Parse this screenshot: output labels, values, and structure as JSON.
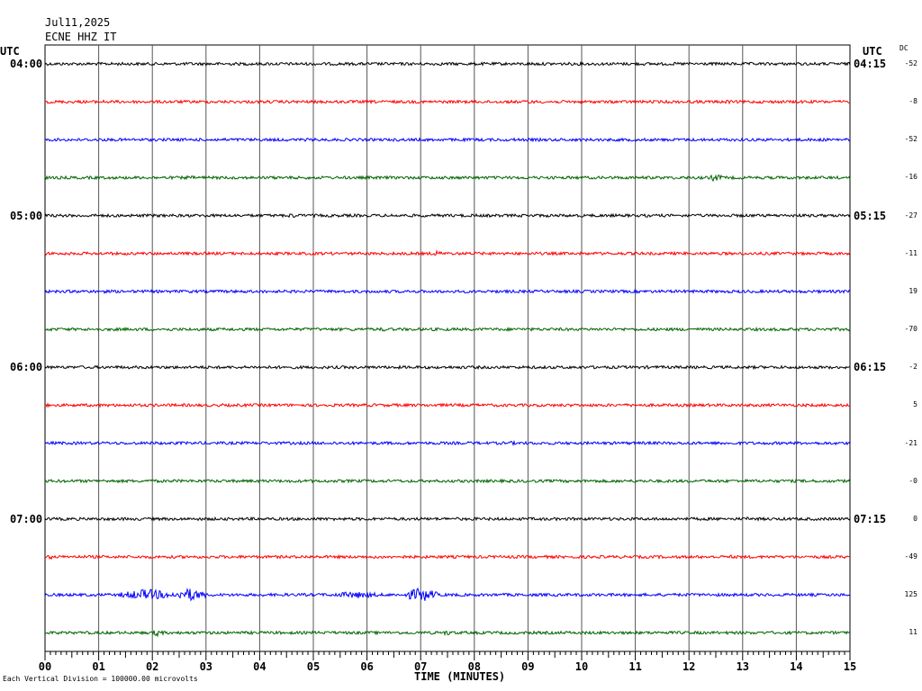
{
  "header": {
    "date": "Jul11,2025",
    "station": "ECNE HHZ IT"
  },
  "left_utc_label": "UTC",
  "right_utc_label": "UTC",
  "dc_label": "DC",
  "footer": {
    "xlabel": "TIME (MINUTES)",
    "scale_note": "Each Vertical Division = 100000.00 microvolts"
  },
  "colors": {
    "trace_cycle": [
      "#000000",
      "#ff0000",
      "#0000ff",
      "#006400"
    ],
    "grid": "#000000"
  },
  "chart_data": {
    "type": "line",
    "title": "",
    "xlabel": "TIME (MINUTES)",
    "xlim": [
      0,
      15
    ],
    "x_ticks": [
      "00",
      "01",
      "02",
      "03",
      "04",
      "05",
      "06",
      "07",
      "08",
      "09",
      "10",
      "11",
      "12",
      "13",
      "14",
      "15"
    ],
    "grid": true,
    "rows": [
      {
        "left_time": "04:00",
        "right_time": "04:15",
        "dc": "-52",
        "color": "#000000",
        "events": [
          {
            "minute": 9.1,
            "amp": 1.3
          },
          {
            "minute": 13.9,
            "amp": 1.2
          }
        ]
      },
      {
        "left_time": "",
        "right_time": "",
        "dc": "-8",
        "color": "#ff0000",
        "events": [
          {
            "minute": 1.1,
            "amp": 1.3
          },
          {
            "minute": 9.0,
            "amp": 1.6
          },
          {
            "minute": 12.7,
            "amp": 1.6
          }
        ]
      },
      {
        "left_time": "",
        "right_time": "",
        "dc": "-52",
        "color": "#0000ff",
        "events": [
          {
            "minute": 9.6,
            "amp": 1.2
          },
          {
            "minute": 14.4,
            "amp": 1.3
          }
        ]
      },
      {
        "left_time": "",
        "right_time": "",
        "dc": "-16",
        "color": "#006400",
        "events": [
          {
            "minute": 2.7,
            "amp": 1.6
          },
          {
            "minute": 12.5,
            "amp": 3.0
          }
        ]
      },
      {
        "left_time": "05:00",
        "right_time": "05:15",
        "dc": "-27",
        "color": "#000000",
        "events": [
          {
            "minute": 2.3,
            "amp": 1.4
          },
          {
            "minute": 4.6,
            "amp": 1.8
          }
        ]
      },
      {
        "left_time": "",
        "right_time": "",
        "dc": "-11",
        "color": "#ff0000",
        "events": [
          {
            "minute": 7.3,
            "amp": 2.0
          }
        ]
      },
      {
        "left_time": "",
        "right_time": "",
        "dc": "19",
        "color": "#0000ff",
        "events": [
          {
            "minute": 1.1,
            "amp": 1.2
          }
        ]
      },
      {
        "left_time": "",
        "right_time": "",
        "dc": "-70",
        "color": "#006400",
        "events": [
          {
            "minute": 6.3,
            "amp": 1.5
          },
          {
            "minute": 14.5,
            "amp": 1.4
          }
        ]
      },
      {
        "left_time": "06:00",
        "right_time": "06:15",
        "dc": "-2",
        "color": "#000000",
        "events": []
      },
      {
        "left_time": "",
        "right_time": "",
        "dc": "5",
        "color": "#ff0000",
        "events": [
          {
            "minute": 1.0,
            "amp": 1.3
          },
          {
            "minute": 13.9,
            "amp": 1.3
          }
        ]
      },
      {
        "left_time": "",
        "right_time": "",
        "dc": "-21",
        "color": "#0000ff",
        "events": [
          {
            "minute": 5.4,
            "amp": 1.2
          },
          {
            "minute": 8.7,
            "amp": 1.4
          },
          {
            "minute": 12.6,
            "amp": 1.5
          }
        ]
      },
      {
        "left_time": "",
        "right_time": "",
        "dc": "-0",
        "color": "#006400",
        "events": [
          {
            "minute": 1.2,
            "amp": 1.4
          },
          {
            "minute": 2.0,
            "amp": 1.3
          }
        ]
      },
      {
        "left_time": "07:00",
        "right_time": "07:15",
        "dc": "0",
        "color": "#000000",
        "events": [
          {
            "minute": 10.2,
            "amp": 1.3
          },
          {
            "minute": 13.1,
            "amp": 1.4
          }
        ]
      },
      {
        "left_time": "",
        "right_time": "",
        "dc": "-49",
        "color": "#ff0000",
        "events": [
          {
            "minute": 0.1,
            "amp": 1.6
          },
          {
            "minute": 12.8,
            "amp": 1.3
          }
        ]
      },
      {
        "left_time": "",
        "right_time": "",
        "dc": "125",
        "color": "#0000ff",
        "events": [
          {
            "minute": 1.9,
            "amp": 4.0,
            "width": 0.5
          },
          {
            "minute": 2.7,
            "amp": 4.5,
            "width": 0.3
          },
          {
            "minute": 5.8,
            "amp": 2.5,
            "width": 0.5
          },
          {
            "minute": 7.0,
            "amp": 5.0,
            "width": 0.3
          }
        ]
      },
      {
        "left_time": "",
        "right_time": "",
        "dc": "11",
        "color": "#006400",
        "events": [
          {
            "minute": 2.1,
            "amp": 2.5
          },
          {
            "minute": 6.5,
            "amp": 1.4
          },
          {
            "minute": 7.5,
            "amp": 2.0
          }
        ]
      }
    ]
  }
}
